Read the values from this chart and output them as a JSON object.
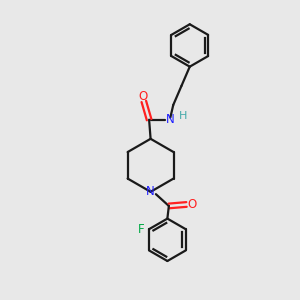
{
  "background_color": "#e8e8e8",
  "bond_color": "#1a1a1a",
  "atom_colors": {
    "N": "#2020ff",
    "O": "#ff2020",
    "F": "#00aa44",
    "H": "#44aaaa",
    "C": "#1a1a1a"
  },
  "figsize": [
    3.0,
    3.0
  ],
  "dpi": 100
}
